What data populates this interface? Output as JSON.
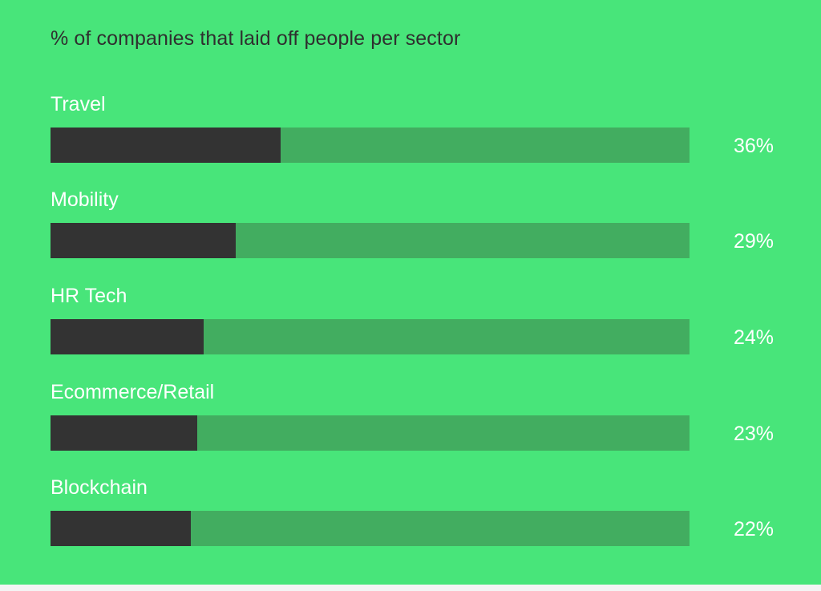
{
  "chart_data": {
    "type": "bar",
    "orientation": "horizontal",
    "title": "% of companies that laid off people per sector",
    "categories": [
      "Travel",
      "Mobility",
      "HR Tech",
      "Ecommerce/Retail",
      "Blockchain"
    ],
    "values": [
      36,
      29,
      24,
      23,
      22
    ],
    "value_labels": [
      "36%",
      "29%",
      "24%",
      "23%",
      "22%"
    ],
    "xlim": [
      0,
      100
    ],
    "grid": false,
    "legend": "none",
    "colors": {
      "background": "#48e57a",
      "track": "#42ad60",
      "bar": "#333333",
      "label": "#ffffff",
      "title": "#2f2f2f"
    }
  }
}
